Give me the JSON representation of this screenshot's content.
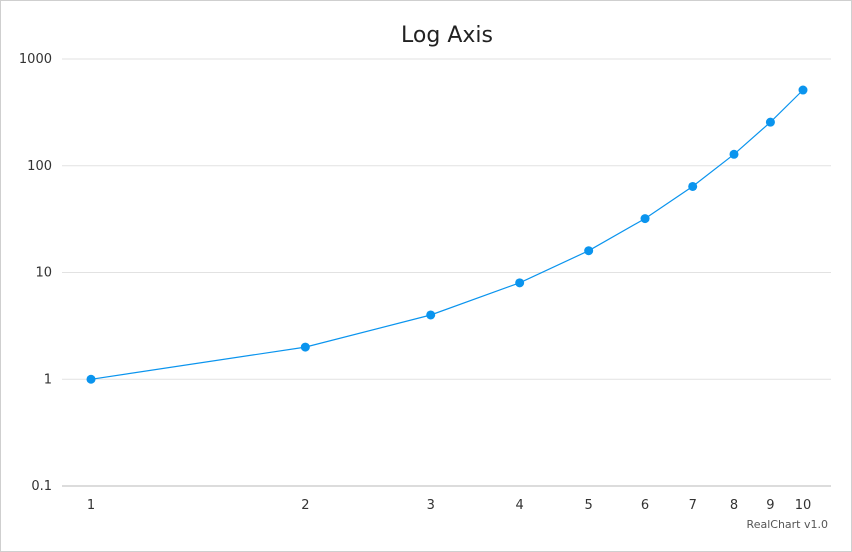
{
  "chart_data": {
    "type": "line",
    "title": "Log Axis",
    "credit": "RealChart v1.0",
    "x": [
      1,
      2,
      3,
      4,
      5,
      6,
      7,
      8,
      9,
      10
    ],
    "x_scale": "log",
    "x_ticks": [
      "1",
      "2",
      "3",
      "4",
      "5",
      "6",
      "7",
      "8",
      "9",
      "10"
    ],
    "y_scale": "log",
    "ylim": [
      0.1,
      1000
    ],
    "y_ticks": [
      "0.1",
      "1",
      "10",
      "100",
      "1000"
    ],
    "series": [
      {
        "values": [
          1,
          2,
          4,
          8,
          16,
          32,
          64,
          128,
          256,
          512
        ],
        "color": "#0a94ee"
      }
    ],
    "grid": true,
    "legend": "none",
    "gridline_color": "#e2e2e2",
    "axis_color": "#b8b8b8"
  }
}
